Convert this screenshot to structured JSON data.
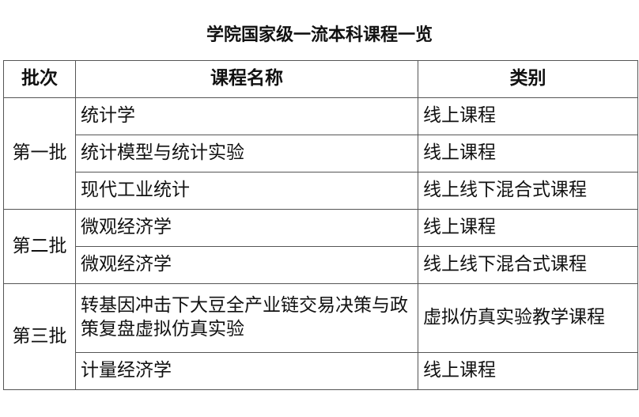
{
  "title": "学院国家级一流本科课程一览",
  "headers": [
    "批次",
    "课程名称",
    "类别"
  ],
  "groups": [
    {
      "batch": "第一批",
      "rows": [
        {
          "course": "统计学",
          "type": "线上课程"
        },
        {
          "course": "统计模型与统计实验",
          "type": "线上课程"
        },
        {
          "course": "现代工业统计",
          "type": "线上线下混合式课程"
        }
      ]
    },
    {
      "batch": "第二批",
      "rows": [
        {
          "course": "微观经济学",
          "type": "线上课程"
        },
        {
          "course": "微观经济学",
          "type": "线上线下混合式课程"
        }
      ]
    },
    {
      "batch": "第三批",
      "rows": [
        {
          "course": "转基因冲击下大豆全产业链交易决策与政策复盘虚拟仿真实验",
          "type": "虚拟仿真实验教学课程"
        },
        {
          "course": "计量经济学",
          "type": "线上课程"
        }
      ]
    }
  ]
}
